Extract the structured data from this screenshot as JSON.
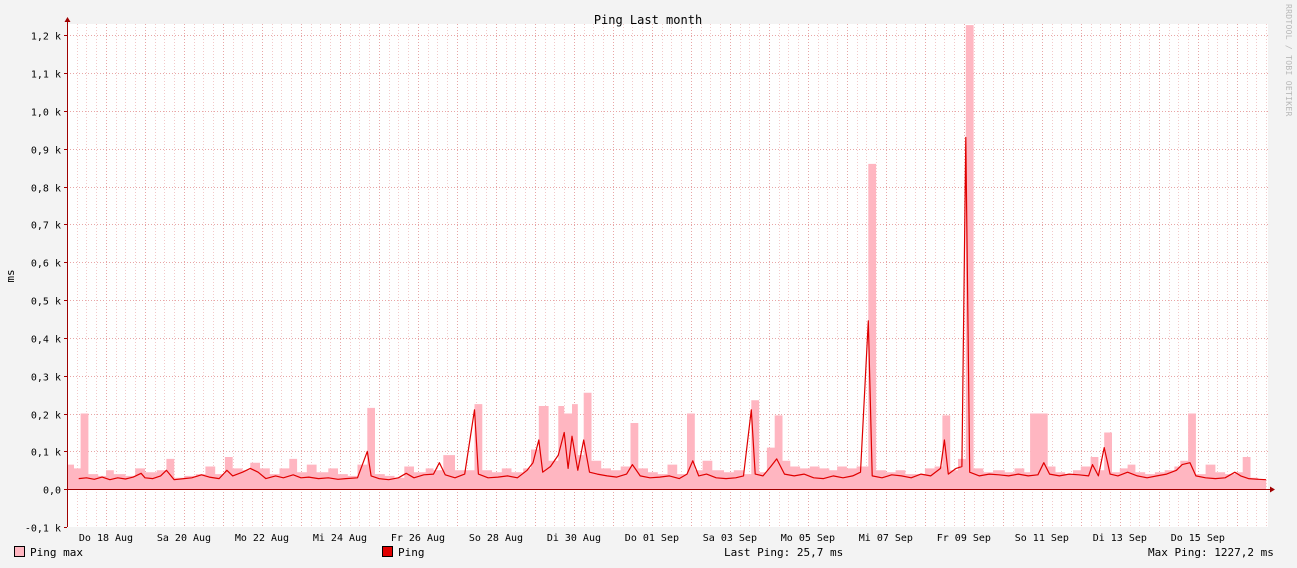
{
  "title": "Ping Last month",
  "watermark": "RRDTOOL / TOBI OETIKER",
  "colors": {
    "background": "#f3f3f3",
    "canvas": "#ffffff",
    "grid_minor": "#f2c9c9",
    "grid_major": "#e8a6a6",
    "axis": "#a00000",
    "ping_max": "#ffb6c1",
    "ping": "#e00000"
  },
  "legend": {
    "ping_max_label": "Ping max",
    "ping_label": "Ping",
    "last_ping": "Last Ping: 25,7 ms",
    "max_ping": "Max Ping: 1227,2 ms"
  },
  "chart_data": {
    "type": "area",
    "title": "Ping Last month",
    "ylabel": "ms",
    "xlabel": "",
    "ylim": [
      -100,
      1230
    ],
    "xlim": [
      0,
      30.8
    ],
    "y_ticks": [
      -100,
      0,
      100,
      200,
      300,
      400,
      500,
      600,
      700,
      800,
      900,
      1000,
      1100,
      1200
    ],
    "y_tick_labels": [
      "-0,1 k",
      "0,0",
      "0,1 k",
      "0,2 k",
      "0,3 k",
      "0,4 k",
      "0,5 k",
      "0,6 k",
      "0,7 k",
      "0,8 k",
      "0,9 k",
      "1,0 k",
      "1,1 k",
      "1,2 k"
    ],
    "x_ticks": [
      1,
      3,
      5,
      7,
      9,
      11,
      13,
      15,
      17,
      19,
      21,
      23,
      25,
      27,
      29
    ],
    "x_tick_labels": [
      "Do 18 Aug",
      "Sa 20 Aug",
      "Mo 22 Aug",
      "Mi 24 Aug",
      "Fr 26 Aug",
      "So 28 Aug",
      "Di 30 Aug",
      "Do 01 Sep",
      "Sa 03 Sep",
      "Mo 05 Sep",
      "Mi 07 Sep",
      "Fr 09 Sep",
      "So 11 Sep",
      "Di 13 Sep",
      "Do 15 Sep"
    ],
    "x_unit": "days since 17 Aug 00:00",
    "grid": true,
    "legend_position": "bottom",
    "series": [
      {
        "name": "Ping max",
        "style": "area",
        "points": [
          [
            0.0,
            65
          ],
          [
            0.18,
            55
          ],
          [
            0.35,
            200
          ],
          [
            0.55,
            40
          ],
          [
            0.8,
            35
          ],
          [
            1.0,
            50
          ],
          [
            1.2,
            40
          ],
          [
            1.5,
            35
          ],
          [
            1.75,
            55
          ],
          [
            2.0,
            45
          ],
          [
            2.3,
            50
          ],
          [
            2.55,
            80
          ],
          [
            2.75,
            30
          ],
          [
            3.0,
            35
          ],
          [
            3.3,
            40
          ],
          [
            3.55,
            60
          ],
          [
            3.8,
            40
          ],
          [
            4.05,
            85
          ],
          [
            4.25,
            55
          ],
          [
            4.5,
            50
          ],
          [
            4.7,
            70
          ],
          [
            4.95,
            55
          ],
          [
            5.2,
            40
          ],
          [
            5.45,
            55
          ],
          [
            5.7,
            80
          ],
          [
            5.9,
            45
          ],
          [
            6.15,
            65
          ],
          [
            6.4,
            45
          ],
          [
            6.7,
            55
          ],
          [
            6.95,
            40
          ],
          [
            7.2,
            35
          ],
          [
            7.45,
            65
          ],
          [
            7.7,
            215
          ],
          [
            7.9,
            40
          ],
          [
            8.15,
            35
          ],
          [
            8.4,
            30
          ],
          [
            8.65,
            60
          ],
          [
            8.9,
            45
          ],
          [
            9.2,
            55
          ],
          [
            9.4,
            50
          ],
          [
            9.65,
            90
          ],
          [
            9.95,
            50
          ],
          [
            10.2,
            50
          ],
          [
            10.45,
            225
          ],
          [
            10.65,
            50
          ],
          [
            10.9,
            45
          ],
          [
            11.15,
            55
          ],
          [
            11.4,
            45
          ],
          [
            11.7,
            55
          ],
          [
            11.9,
            105
          ],
          [
            12.1,
            220
          ],
          [
            12.35,
            75
          ],
          [
            12.6,
            220
          ],
          [
            12.75,
            200
          ],
          [
            12.95,
            225
          ],
          [
            13.1,
            90
          ],
          [
            13.25,
            255
          ],
          [
            13.45,
            75
          ],
          [
            13.7,
            55
          ],
          [
            13.95,
            50
          ],
          [
            14.2,
            60
          ],
          [
            14.45,
            175
          ],
          [
            14.65,
            55
          ],
          [
            14.9,
            45
          ],
          [
            15.15,
            40
          ],
          [
            15.4,
            65
          ],
          [
            15.65,
            40
          ],
          [
            15.9,
            200
          ],
          [
            16.1,
            50
          ],
          [
            16.3,
            75
          ],
          [
            16.55,
            50
          ],
          [
            16.85,
            45
          ],
          [
            17.1,
            50
          ],
          [
            17.35,
            40
          ],
          [
            17.55,
            235
          ],
          [
            17.75,
            45
          ],
          [
            17.95,
            110
          ],
          [
            18.15,
            195
          ],
          [
            18.35,
            75
          ],
          [
            18.55,
            60
          ],
          [
            18.8,
            55
          ],
          [
            19.05,
            60
          ],
          [
            19.3,
            55
          ],
          [
            19.55,
            50
          ],
          [
            19.75,
            60
          ],
          [
            20.0,
            55
          ],
          [
            20.25,
            60
          ],
          [
            20.55,
            860
          ],
          [
            20.75,
            50
          ],
          [
            21.0,
            45
          ],
          [
            21.25,
            50
          ],
          [
            21.5,
            40
          ],
          [
            21.75,
            40
          ],
          [
            22.0,
            55
          ],
          [
            22.25,
            60
          ],
          [
            22.45,
            195
          ],
          [
            22.65,
            50
          ],
          [
            22.85,
            80
          ],
          [
            23.05,
            1227
          ],
          [
            23.25,
            55
          ],
          [
            23.5,
            45
          ],
          [
            23.75,
            50
          ],
          [
            24.05,
            45
          ],
          [
            24.3,
            55
          ],
          [
            24.55,
            45
          ],
          [
            24.7,
            200
          ],
          [
            25.0,
            200
          ],
          [
            25.15,
            60
          ],
          [
            25.35,
            45
          ],
          [
            25.6,
            40
          ],
          [
            25.8,
            50
          ],
          [
            26.0,
            60
          ],
          [
            26.25,
            85
          ],
          [
            26.45,
            50
          ],
          [
            26.6,
            150
          ],
          [
            26.8,
            45
          ],
          [
            27.0,
            55
          ],
          [
            27.2,
            65
          ],
          [
            27.4,
            45
          ],
          [
            27.65,
            40
          ],
          [
            27.9,
            45
          ],
          [
            28.15,
            50
          ],
          [
            28.4,
            60
          ],
          [
            28.55,
            75
          ],
          [
            28.75,
            200
          ],
          [
            28.95,
            40
          ],
          [
            29.2,
            65
          ],
          [
            29.45,
            45
          ],
          [
            29.7,
            40
          ],
          [
            29.95,
            45
          ],
          [
            30.15,
            85
          ],
          [
            30.35,
            30
          ],
          [
            30.55,
            25
          ]
        ]
      },
      {
        "name": "Ping",
        "style": "line",
        "points": [
          [
            0.3,
            28
          ],
          [
            0.5,
            30
          ],
          [
            0.7,
            26
          ],
          [
            0.9,
            32
          ],
          [
            1.1,
            25
          ],
          [
            1.3,
            30
          ],
          [
            1.5,
            27
          ],
          [
            1.7,
            32
          ],
          [
            1.9,
            42
          ],
          [
            2.0,
            30
          ],
          [
            2.2,
            28
          ],
          [
            2.4,
            35
          ],
          [
            2.55,
            50
          ],
          [
            2.75,
            25
          ],
          [
            3.0,
            28
          ],
          [
            3.2,
            30
          ],
          [
            3.45,
            38
          ],
          [
            3.65,
            32
          ],
          [
            3.9,
            28
          ],
          [
            4.1,
            50
          ],
          [
            4.25,
            35
          ],
          [
            4.5,
            45
          ],
          [
            4.7,
            55
          ],
          [
            4.9,
            45
          ],
          [
            5.1,
            28
          ],
          [
            5.35,
            35
          ],
          [
            5.55,
            30
          ],
          [
            5.8,
            38
          ],
          [
            6.0,
            30
          ],
          [
            6.2,
            32
          ],
          [
            6.45,
            28
          ],
          [
            6.7,
            30
          ],
          [
            6.95,
            26
          ],
          [
            7.15,
            28
          ],
          [
            7.45,
            30
          ],
          [
            7.7,
            100
          ],
          [
            7.8,
            35
          ],
          [
            8.0,
            28
          ],
          [
            8.25,
            25
          ],
          [
            8.5,
            30
          ],
          [
            8.7,
            42
          ],
          [
            8.9,
            30
          ],
          [
            9.15,
            38
          ],
          [
            9.4,
            40
          ],
          [
            9.55,
            70
          ],
          [
            9.7,
            38
          ],
          [
            9.95,
            30
          ],
          [
            10.2,
            40
          ],
          [
            10.45,
            210
          ],
          [
            10.55,
            40
          ],
          [
            10.8,
            30
          ],
          [
            11.05,
            32
          ],
          [
            11.3,
            35
          ],
          [
            11.55,
            30
          ],
          [
            11.8,
            50
          ],
          [
            11.95,
            70
          ],
          [
            12.1,
            130
          ],
          [
            12.2,
            45
          ],
          [
            12.4,
            60
          ],
          [
            12.6,
            90
          ],
          [
            12.75,
            150
          ],
          [
            12.85,
            55
          ],
          [
            12.95,
            140
          ],
          [
            13.1,
            50
          ],
          [
            13.25,
            130
          ],
          [
            13.4,
            45
          ],
          [
            13.6,
            40
          ],
          [
            13.85,
            35
          ],
          [
            14.1,
            32
          ],
          [
            14.35,
            40
          ],
          [
            14.5,
            65
          ],
          [
            14.7,
            35
          ],
          [
            14.95,
            30
          ],
          [
            15.2,
            32
          ],
          [
            15.45,
            35
          ],
          [
            15.7,
            28
          ],
          [
            15.9,
            40
          ],
          [
            16.05,
            75
          ],
          [
            16.2,
            35
          ],
          [
            16.4,
            40
          ],
          [
            16.65,
            30
          ],
          [
            16.9,
            28
          ],
          [
            17.15,
            30
          ],
          [
            17.35,
            35
          ],
          [
            17.55,
            210
          ],
          [
            17.65,
            40
          ],
          [
            17.85,
            35
          ],
          [
            18.05,
            60
          ],
          [
            18.2,
            80
          ],
          [
            18.4,
            40
          ],
          [
            18.65,
            35
          ],
          [
            18.9,
            40
          ],
          [
            19.15,
            30
          ],
          [
            19.4,
            28
          ],
          [
            19.65,
            35
          ],
          [
            19.9,
            30
          ],
          [
            20.15,
            35
          ],
          [
            20.35,
            45
          ],
          [
            20.55,
            445
          ],
          [
            20.65,
            35
          ],
          [
            20.9,
            30
          ],
          [
            21.15,
            38
          ],
          [
            21.4,
            35
          ],
          [
            21.65,
            30
          ],
          [
            21.9,
            40
          ],
          [
            22.15,
            35
          ],
          [
            22.4,
            55
          ],
          [
            22.5,
            130
          ],
          [
            22.6,
            40
          ],
          [
            22.8,
            55
          ],
          [
            22.95,
            60
          ],
          [
            23.05,
            930
          ],
          [
            23.15,
            45
          ],
          [
            23.4,
            35
          ],
          [
            23.65,
            40
          ],
          [
            23.9,
            38
          ],
          [
            24.15,
            35
          ],
          [
            24.4,
            40
          ],
          [
            24.65,
            35
          ],
          [
            24.9,
            38
          ],
          [
            25.05,
            70
          ],
          [
            25.2,
            40
          ],
          [
            25.45,
            35
          ],
          [
            25.7,
            40
          ],
          [
            25.95,
            38
          ],
          [
            26.2,
            35
          ],
          [
            26.3,
            65
          ],
          [
            26.45,
            35
          ],
          [
            26.6,
            110
          ],
          [
            26.75,
            40
          ],
          [
            26.95,
            35
          ],
          [
            27.2,
            45
          ],
          [
            27.45,
            35
          ],
          [
            27.7,
            30
          ],
          [
            27.95,
            35
          ],
          [
            28.2,
            40
          ],
          [
            28.45,
            50
          ],
          [
            28.6,
            65
          ],
          [
            28.8,
            70
          ],
          [
            28.95,
            35
          ],
          [
            29.2,
            30
          ],
          [
            29.45,
            28
          ],
          [
            29.7,
            30
          ],
          [
            29.95,
            45
          ],
          [
            30.1,
            35
          ],
          [
            30.3,
            28
          ],
          [
            30.55,
            26
          ],
          [
            30.75,
            25
          ]
        ]
      }
    ]
  }
}
